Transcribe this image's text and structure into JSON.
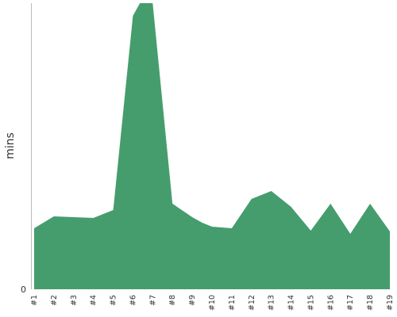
{
  "chart_data": {
    "type": "area",
    "categories": [
      "#1",
      "#2",
      "#3",
      "#4",
      "#5",
      "#6",
      "#7",
      "#8",
      "#9",
      "#10",
      "#11",
      "#12",
      "#13",
      "#14",
      "#15",
      "#16",
      "#17",
      "#18",
      "#19"
    ],
    "x_ticks": [
      {
        "cat": 0,
        "label": "#1"
      },
      {
        "cat": 1,
        "label": "#2"
      },
      {
        "cat": 2,
        "label": "#3"
      },
      {
        "cat": 3,
        "label": "#4"
      },
      {
        "cat": 4,
        "label": "#5"
      },
      {
        "cat": 5,
        "label": "#6"
      },
      {
        "cat": 6,
        "label": "#7"
      },
      {
        "cat": 7,
        "label": "#8"
      },
      {
        "cat": 8,
        "label": "#9"
      },
      {
        "cat": 9,
        "label": "#10"
      },
      {
        "cat": 10,
        "label": "#11"
      },
      {
        "cat": 11,
        "label": "#12"
      },
      {
        "cat": 12,
        "label": "#13"
      },
      {
        "cat": 13,
        "label": "#14"
      },
      {
        "cat": 14,
        "label": "#15"
      },
      {
        "cat": 15,
        "label": "#16"
      },
      {
        "cat": 16,
        "label": "#17"
      },
      {
        "cat": 17,
        "label": "#18"
      },
      {
        "cat": 18,
        "label": "#19"
      }
    ],
    "points": [
      {
        "x": 0.0,
        "y": 77
      },
      {
        "x": 1.0,
        "y": 92
      },
      {
        "x": 2.0,
        "y": 91
      },
      {
        "x": 3.0,
        "y": 90
      },
      {
        "x": 4.0,
        "y": 100
      },
      {
        "x": 5.0,
        "y": 345
      },
      {
        "x": 5.35,
        "y": 361
      },
      {
        "x": 6.0,
        "y": 361
      },
      {
        "x": 7.0,
        "y": 108
      },
      {
        "x": 8.0,
        "y": 91
      },
      {
        "x": 8.5,
        "y": 84
      },
      {
        "x": 9.0,
        "y": 79
      },
      {
        "x": 10.0,
        "y": 77
      },
      {
        "x": 11.0,
        "y": 114
      },
      {
        "x": 12.0,
        "y": 124
      },
      {
        "x": 13.0,
        "y": 104
      },
      {
        "x": 14.0,
        "y": 74
      },
      {
        "x": 15.0,
        "y": 108
      },
      {
        "x": 16.0,
        "y": 70
      },
      {
        "x": 17.0,
        "y": 108
      },
      {
        "x": 18.0,
        "y": 73
      }
    ],
    "ylabel": "mins",
    "y_ticks": [
      0
    ],
    "ylim": [
      0,
      361
    ],
    "grid": false,
    "legend": false,
    "fill_color": "#459d6d",
    "axis_color": "#bbbbbb",
    "text_color": "#333333"
  }
}
